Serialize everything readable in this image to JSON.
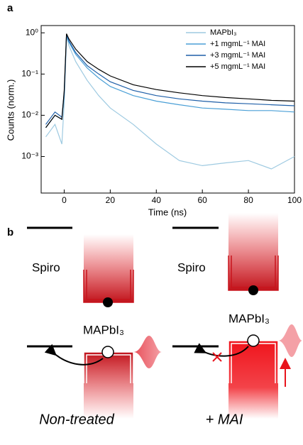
{
  "chart_data": {
    "type": "line",
    "panel_label": "a",
    "x_label": "Time (ns)",
    "y_label": "Counts (norm.)",
    "x": [
      -8,
      -4,
      -1,
      0,
      1,
      2,
      5,
      10,
      15,
      20,
      30,
      40,
      50,
      60,
      70,
      80,
      90,
      100
    ],
    "series": [
      {
        "name": "MAPbI₃",
        "color": "#9ecae1",
        "values": [
          0.003,
          0.006,
          0.002,
          0.02,
          0.8,
          0.5,
          0.2,
          0.07,
          0.03,
          0.015,
          0.006,
          0.002,
          0.0008,
          0.0006,
          0.0007,
          0.0008,
          0.0005,
          0.001
        ]
      },
      {
        "name": "+1 mgmL⁻¹ MAI",
        "color": "#4a9fd6",
        "values": [
          0.005,
          0.01,
          0.008,
          0.03,
          0.85,
          0.6,
          0.3,
          0.14,
          0.08,
          0.05,
          0.03,
          0.022,
          0.018,
          0.015,
          0.014,
          0.013,
          0.013,
          0.012
        ]
      },
      {
        "name": "+3 mgmL⁻¹ MAI",
        "color": "#1f5fa8",
        "values": [
          0.006,
          0.012,
          0.009,
          0.035,
          0.9,
          0.65,
          0.33,
          0.16,
          0.1,
          0.065,
          0.04,
          0.03,
          0.025,
          0.022,
          0.02,
          0.019,
          0.018,
          0.017
        ]
      },
      {
        "name": "+5 mgmL⁻¹ MAI",
        "color": "#000000",
        "values": [
          0.005,
          0.01,
          0.008,
          0.04,
          0.95,
          0.72,
          0.4,
          0.2,
          0.13,
          0.09,
          0.055,
          0.042,
          0.035,
          0.03,
          0.027,
          0.025,
          0.023,
          0.022
        ]
      }
    ],
    "xlim": [
      -10,
      100
    ],
    "xticks": [
      0,
      20,
      40,
      60,
      80,
      100
    ],
    "ylim": [
      0.00013,
      1.5
    ],
    "log_y": true,
    "yticks": [
      {
        "value": 0.001,
        "label": "10⁻³"
      },
      {
        "value": 0.01,
        "label": "10⁻²"
      },
      {
        "value": 0.1,
        "label": "10⁻¹"
      },
      {
        "value": 1,
        "label": "10⁰"
      }
    ],
    "legend": "upper right"
  },
  "diagram": {
    "panel_label": "b",
    "columns": [
      {
        "top_label": "Spiro",
        "bottom_label": "MAPbI₃",
        "caption": "Non-treated"
      },
      {
        "top_label": "Spiro",
        "bottom_label": "MAPbI₃",
        "caption": "+ MAI"
      }
    ]
  }
}
